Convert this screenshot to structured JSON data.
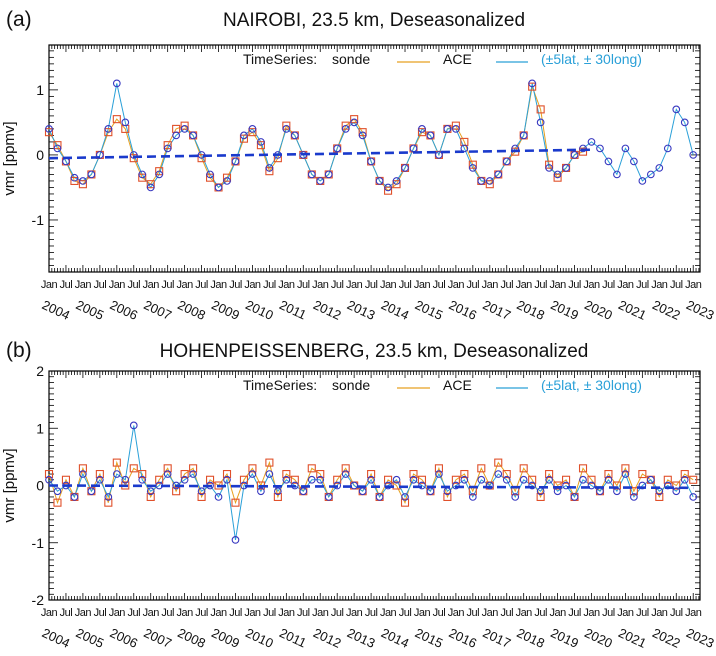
{
  "chart_data": [
    {
      "type": "line",
      "panel_label": "(a)",
      "title": "NAIROBI, 23.5 km, Deseasonalized",
      "ylabel": "vmr [ppmv]",
      "xlabel": "",
      "ylim": [
        -1.8,
        1.69
      ],
      "xlim": [
        2004.0,
        2023.2
      ],
      "yticks": [
        -1,
        0,
        1
      ],
      "legend": {
        "prefix": "TimeSeries:",
        "sonde": "sonde",
        "ace": "ACE",
        "ace_note": "(±5lat, ± 30long)",
        "placement": "top-right"
      },
      "x_start": 2004.0,
      "x_step": 0.25,
      "series": [
        {
          "name": "sonde",
          "color": "#e8a020",
          "marker_color": "#e0502a",
          "marker": "square",
          "values": [
            0.35,
            0.15,
            -0.1,
            -0.4,
            -0.45,
            -0.3,
            0.0,
            0.35,
            0.55,
            0.4,
            -0.05,
            -0.35,
            -0.45,
            -0.25,
            0.15,
            0.4,
            0.45,
            0.3,
            -0.05,
            -0.35,
            -0.5,
            -0.35,
            -0.1,
            0.25,
            0.35,
            0.15,
            -0.25,
            -0.05,
            0.45,
            0.3,
            0.0,
            -0.3,
            -0.4,
            -0.3,
            0.1,
            0.45,
            0.55,
            0.35,
            -0.1,
            -0.4,
            -0.55,
            -0.45,
            -0.2,
            0.1,
            0.35,
            0.3,
            0.0,
            0.4,
            0.45,
            0.2,
            -0.15,
            -0.4,
            -0.45,
            -0.3,
            -0.1,
            0.05,
            0.3,
            1.05,
            0.7,
            -0.15,
            -0.35,
            -0.2,
            0.0,
            0.05
          ]
        },
        {
          "name": "ACE",
          "color": "#2aa0d8",
          "marker_color": "#3838c0",
          "marker": "circle",
          "values": [
            0.4,
            0.1,
            -0.1,
            -0.35,
            -0.4,
            -0.3,
            0.0,
            0.4,
            1.1,
            0.5,
            0.0,
            -0.3,
            -0.5,
            -0.3,
            0.1,
            0.3,
            0.4,
            0.3,
            0.0,
            -0.3,
            -0.5,
            -0.4,
            -0.1,
            0.3,
            0.4,
            0.2,
            -0.2,
            0.0,
            0.4,
            0.3,
            0.0,
            -0.3,
            -0.4,
            -0.3,
            0.1,
            0.4,
            0.5,
            0.3,
            -0.1,
            -0.4,
            -0.5,
            -0.4,
            -0.2,
            0.1,
            0.4,
            0.3,
            0.0,
            0.4,
            0.4,
            0.1,
            -0.2,
            -0.4,
            -0.4,
            -0.3,
            -0.1,
            0.1,
            0.3,
            1.1,
            0.5,
            -0.2,
            -0.3,
            -0.2,
            0.0,
            0.1,
            0.2,
            0.1,
            -0.1,
            -0.3,
            0.1,
            -0.1,
            -0.4,
            -0.3,
            -0.2,
            0.1,
            0.7,
            0.5,
            0.0
          ]
        }
      ],
      "trend": {
        "x": [
          2004.0,
          2020.0
        ],
        "y": [
          -0.05,
          0.08
        ],
        "color": "#1a3acc"
      }
    },
    {
      "type": "line",
      "panel_label": "(b)",
      "title": "HOHENPEISSENBERG, 23.5 km, Deseasonalized",
      "ylabel": "vmr [ppmv]",
      "xlabel": "",
      "ylim": [
        -2.0,
        2.0
      ],
      "xlim": [
        2004.0,
        2023.2
      ],
      "yticks": [
        -2,
        -1,
        0,
        1,
        2
      ],
      "legend": {
        "prefix": "TimeSeries:",
        "sonde": "sonde",
        "ace": "ACE",
        "ace_note": "(±5lat, ± 30long)",
        "placement": "top-right"
      },
      "x_start": 2004.0,
      "x_step": 0.25,
      "series": [
        {
          "name": "sonde",
          "color": "#e8a020",
          "marker_color": "#e0502a",
          "marker": "square",
          "values": [
            0.2,
            -0.3,
            0.1,
            -0.2,
            0.3,
            -0.1,
            0.2,
            -0.3,
            0.4,
            0.0,
            0.3,
            0.2,
            -0.2,
            0.1,
            0.3,
            -0.1,
            0.2,
            0.3,
            -0.2,
            0.1,
            0.0,
            0.2,
            -0.3,
            0.1,
            0.3,
            0.0,
            0.4,
            -0.2,
            0.2,
            0.1,
            -0.1,
            0.3,
            0.2,
            -0.2,
            0.1,
            0.3,
            0.0,
            -0.1,
            0.2,
            -0.2,
            0.1,
            0.0,
            -0.3,
            0.2,
            0.1,
            -0.1,
            0.3,
            -0.2,
            0.1,
            0.2,
            -0.1,
            0.3,
            0.0,
            0.4,
            0.2,
            -0.1,
            0.3,
            0.1,
            -0.2,
            0.2,
            0.0,
            0.1,
            -0.2,
            0.3,
            0.1,
            -0.1,
            0.2,
            0.0,
            0.3,
            -0.1,
            0.2,
            0.1,
            -0.2,
            0.1,
            0.0,
            0.2,
            0.1
          ]
        },
        {
          "name": "ACE",
          "color": "#2aa0d8",
          "marker_color": "#3838c0",
          "marker": "circle",
          "values": [
            0.1,
            -0.1,
            0.0,
            -0.2,
            0.2,
            -0.1,
            0.1,
            -0.2,
            0.2,
            0.1,
            1.05,
            0.1,
            -0.1,
            0.0,
            0.2,
            0.0,
            0.1,
            0.2,
            -0.1,
            0.0,
            -0.2,
            0.1,
            -0.95,
            0.0,
            0.2,
            -0.1,
            0.2,
            -0.1,
            0.1,
            0.0,
            -0.1,
            0.1,
            0.1,
            -0.2,
            0.0,
            0.2,
            0.0,
            -0.1,
            0.1,
            -0.2,
            0.0,
            0.1,
            -0.2,
            0.1,
            0.0,
            -0.1,
            0.2,
            -0.1,
            0.0,
            0.1,
            -0.2,
            0.1,
            0.0,
            0.2,
            0.1,
            -0.2,
            0.1,
            0.0,
            -0.1,
            0.1,
            -0.1,
            0.0,
            -0.2,
            0.1,
            0.0,
            -0.1,
            0.1,
            -0.1,
            0.2,
            -0.2,
            0.0,
            0.1,
            -0.1,
            0.0,
            -0.1,
            0.1,
            -0.2
          ]
        }
      ],
      "trend": {
        "x": [
          2004.0,
          2023.0
        ],
        "y": [
          0.0,
          -0.04
        ],
        "color": "#1a3acc"
      }
    }
  ],
  "x_axis": {
    "month_tick_labels": [
      "Jan",
      "Jul"
    ],
    "year_labels": [
      "2004",
      "2005",
      "2006",
      "2007",
      "2008",
      "2009",
      "2010",
      "2011",
      "2012",
      "2013",
      "2014",
      "2015",
      "2016",
      "2017",
      "2018",
      "2019",
      "2020",
      "2021",
      "2022",
      "2023"
    ]
  }
}
